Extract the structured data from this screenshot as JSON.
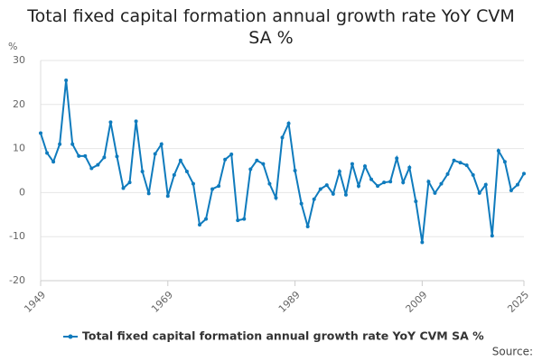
{
  "chart_data": {
    "type": "line",
    "title": "Total fixed capital formation annual growth rate YoY CVM SA %",
    "y_label": "%",
    "source": "Source:",
    "x": [
      1949,
      1950,
      1951,
      1952,
      1953,
      1954,
      1955,
      1956,
      1957,
      1958,
      1959,
      1960,
      1961,
      1962,
      1963,
      1964,
      1965,
      1966,
      1967,
      1968,
      1969,
      1970,
      1971,
      1972,
      1973,
      1974,
      1975,
      1976,
      1977,
      1978,
      1979,
      1980,
      1981,
      1982,
      1983,
      1984,
      1985,
      1986,
      1987,
      1988,
      1989,
      1990,
      1991,
      1992,
      1993,
      1994,
      1995,
      1996,
      1997,
      1998,
      1999,
      2000,
      2001,
      2002,
      2003,
      2004,
      2005,
      2006,
      2007,
      2008,
      2009,
      2010,
      2011,
      2012,
      2013,
      2014,
      2015,
      2016,
      2017,
      2018,
      2019,
      2020,
      2021,
      2022,
      2023,
      2024,
      2025
    ],
    "series": [
      {
        "name": "Total fixed capital formation annual growth rate YoY CVM SA %",
        "color": "#0f7bbd",
        "values": [
          13.5,
          9,
          7,
          11,
          25.5,
          11,
          8.3,
          8.3,
          5.5,
          6.3,
          8,
          16,
          8.2,
          1,
          2.3,
          16.2,
          4.8,
          -0.2,
          8.8,
          11,
          -0.8,
          4,
          7.3,
          4.8,
          2,
          -7.3,
          -6,
          0.8,
          1.5,
          7.5,
          8.7,
          -6.3,
          -6,
          5.3,
          7.3,
          6.5,
          2,
          -1.2,
          12.5,
          15.7,
          5,
          -2.5,
          -7.7,
          -1.5,
          0.8,
          1.7,
          -0.3,
          4.8,
          -0.5,
          6.5,
          1.5,
          6,
          3,
          1.5,
          2.3,
          2.5,
          7.8,
          2.3,
          5.7,
          -2,
          -11.3,
          2.5,
          -0.1,
          2,
          4.2,
          7.3,
          6.8,
          6.2,
          4,
          -0.1,
          1.8,
          -9.8,
          9.5,
          7,
          0.5,
          1.8,
          4.3
        ]
      }
    ],
    "xlim": [
      1949,
      2025
    ],
    "xticks": [
      1949,
      1969,
      1989,
      2009,
      2025
    ],
    "ylim": [
      -20,
      30
    ],
    "yticks": [
      -20,
      -10,
      0,
      10,
      20,
      30
    ],
    "grid": true
  }
}
